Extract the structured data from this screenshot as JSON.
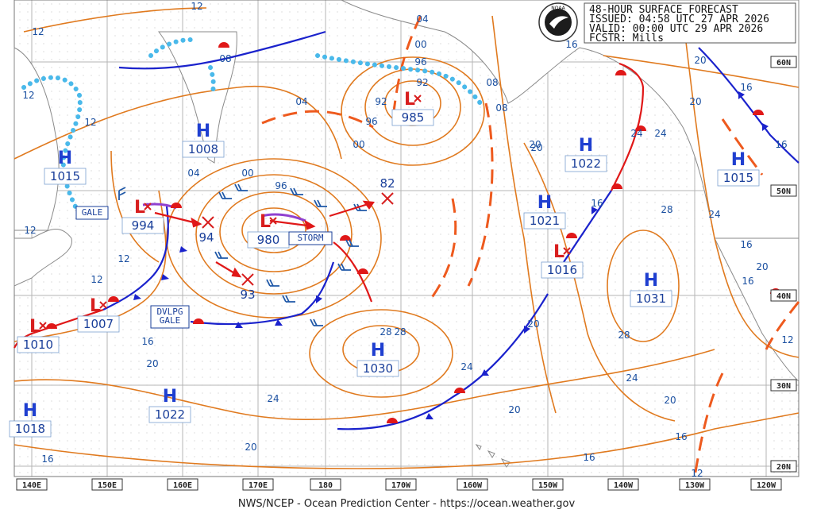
{
  "header": {
    "line1": "48-HOUR SURFACE FORECAST",
    "line2": "ISSUED: 04:58 UTC 27 APR 2026",
    "line3": "VALID:  00:00 UTC 29 APR 2026",
    "line4": "FCSTR:  Mills",
    "logo_text": "NOAA"
  },
  "footer": "NWS/NCEP - Ocean Prediction Center - https://ocean.weather.gov",
  "colors": {
    "isobar": "#e07a1f",
    "trough": "#ee5a1e",
    "high": "#1f3fd0",
    "low": "#d81e1e",
    "cold_front": "#1a22cc",
    "warm_front": "#e01818",
    "ice_edge": "#4ab9ea",
    "wind_barb": "#1f58a8",
    "grid": "#b4b4b4"
  },
  "longitude_labels": [
    "140E",
    "150E",
    "160E",
    "170E",
    "180",
    "170W",
    "160W",
    "150W",
    "140W",
    "130W",
    "120W"
  ],
  "latitude_labels": [
    "60N",
    "50N",
    "40N",
    "30N",
    "20N"
  ],
  "pressure_centers": [
    {
      "type": "H",
      "value": "1008"
    },
    {
      "type": "H",
      "value": "1015"
    },
    {
      "type": "L",
      "value": "994"
    },
    {
      "type": "L",
      "value": "980"
    },
    {
      "type": "L",
      "value": "985"
    },
    {
      "type": "L",
      "value": "1007"
    },
    {
      "type": "L",
      "value": "1010"
    },
    {
      "type": "H",
      "value": "1030"
    },
    {
      "type": "H",
      "value": "1022"
    },
    {
      "type": "H",
      "value": "1018"
    },
    {
      "type": "H",
      "value": "1022"
    },
    {
      "type": "H",
      "value": "1021"
    },
    {
      "type": "L",
      "value": "1016"
    },
    {
      "type": "H",
      "value": "1031"
    },
    {
      "type": "H",
      "value": "1015"
    }
  ],
  "forecast_positions": [
    "94",
    "93",
    "82"
  ],
  "warning_tags": [
    "GALE",
    "STORM",
    "DVLPG",
    "GALE"
  ],
  "isobar_labels": [
    "12",
    "12",
    "12",
    "12",
    "12",
    "08",
    "08",
    "04",
    "04",
    "00",
    "96",
    "92",
    "96",
    "00",
    "04",
    "00",
    "96",
    "92",
    "08",
    "12",
    "16",
    "20",
    "24",
    "28",
    "28",
    "28",
    "24",
    "20",
    "20",
    "20",
    "24",
    "20",
    "16",
    "16",
    "24",
    "20",
    "16",
    "16",
    "20",
    "16",
    "16",
    "16",
    "12",
    "20",
    "24",
    "16",
    "16",
    "12",
    "12",
    "20",
    "28",
    "24",
    "20"
  ]
}
